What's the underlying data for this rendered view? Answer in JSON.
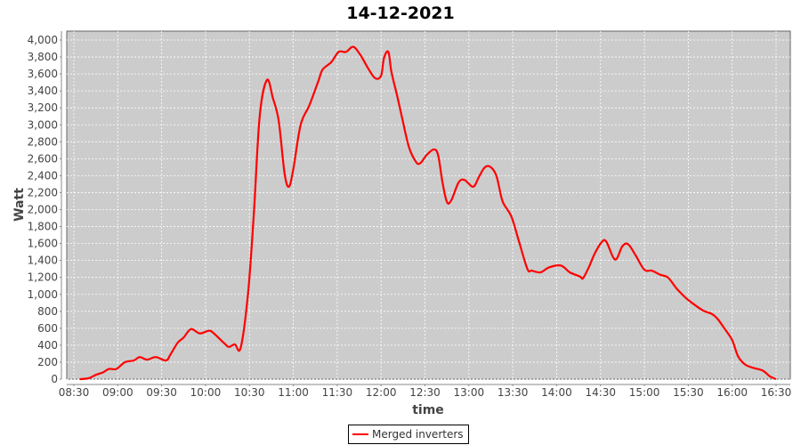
{
  "chart_data": {
    "type": "line",
    "title": "14-12-2021",
    "xlabel": "time",
    "ylabel": "Watt",
    "xlim": [
      "08:30",
      "16:30"
    ],
    "ylim": [
      0,
      4000
    ],
    "x_ticks": [
      "08:30",
      "09:00",
      "09:30",
      "10:00",
      "10:30",
      "11:00",
      "11:30",
      "12:00",
      "12:30",
      "13:00",
      "13:30",
      "14:00",
      "14:30",
      "15:00",
      "15:30",
      "16:00",
      "16:30"
    ],
    "y_ticks": [
      0,
      200,
      400,
      600,
      800,
      1000,
      1200,
      1400,
      1600,
      1800,
      2000,
      2200,
      2400,
      2600,
      2800,
      3000,
      3200,
      3400,
      3600,
      3800,
      4000
    ],
    "grid": true,
    "legend_position": "bottom",
    "colors": {
      "series": "#ff0000",
      "plot_background": "#cccccc",
      "grid": "#ffffff"
    },
    "series": [
      {
        "name": "Merged inverters",
        "x": [
          "08:34",
          "08:40",
          "08:45",
          "08:50",
          "08:54",
          "08:59",
          "09:05",
          "09:11",
          "09:15",
          "09:20",
          "09:26",
          "09:33",
          "09:36",
          "09:41",
          "09:45",
          "09:50",
          "09:56",
          "10:02",
          "10:05",
          "10:13",
          "10:16",
          "10:20",
          "10:24",
          "10:29",
          "10:33",
          "10:37",
          "10:42",
          "10:46",
          "10:50",
          "10:54",
          "10:57",
          "11:00",
          "11:05",
          "11:11",
          "11:17",
          "11:20",
          "11:26",
          "11:31",
          "11:36",
          "11:41",
          "11:46",
          "11:51",
          "11:56",
          "12:00",
          "12:02",
          "12:05",
          "12:07",
          "12:11",
          "12:14",
          "12:19",
          "12:24",
          "12:27",
          "12:31",
          "12:36",
          "12:39",
          "12:42",
          "12:45",
          "12:48",
          "12:53",
          "12:57",
          "13:03",
          "13:07",
          "13:11",
          "13:15",
          "13:19",
          "13:23",
          "13:29",
          "13:34",
          "13:40",
          "13:43",
          "13:49",
          "13:55",
          "14:03",
          "14:09",
          "14:16",
          "14:18",
          "14:22",
          "14:26",
          "14:31",
          "14:34",
          "14:40",
          "14:45",
          "14:49",
          "14:54",
          "15:00",
          "15:05",
          "15:11",
          "15:16",
          "15:22",
          "15:27",
          "15:31",
          "15:40",
          "15:46",
          "15:50",
          "15:55",
          "16:00",
          "16:04",
          "16:09",
          "16:15",
          "16:21",
          "16:26",
          "16:30"
        ],
        "values": [
          0,
          10,
          50,
          80,
          120,
          120,
          200,
          220,
          260,
          230,
          260,
          220,
          290,
          430,
          490,
          590,
          540,
          570,
          550,
          420,
          380,
          410,
          370,
          1000,
          1950,
          3100,
          3530,
          3320,
          3050,
          2430,
          2270,
          2480,
          3000,
          3230,
          3510,
          3650,
          3740,
          3860,
          3860,
          3920,
          3820,
          3670,
          3550,
          3580,
          3790,
          3860,
          3630,
          3340,
          3110,
          2740,
          2560,
          2550,
          2640,
          2710,
          2640,
          2320,
          2090,
          2110,
          2320,
          2350,
          2270,
          2390,
          2500,
          2500,
          2390,
          2100,
          1920,
          1640,
          1300,
          1280,
          1260,
          1320,
          1340,
          1260,
          1210,
          1190,
          1320,
          1480,
          1620,
          1620,
          1410,
          1570,
          1590,
          1460,
          1290,
          1280,
          1230,
          1200,
          1070,
          980,
          920,
          810,
          770,
          710,
          590,
          460,
          270,
          170,
          130,
          100,
          30,
          0
        ]
      }
    ]
  }
}
